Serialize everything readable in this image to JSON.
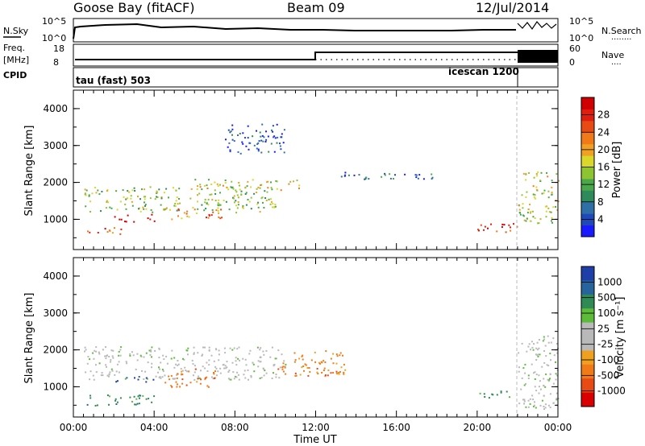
{
  "header": {
    "station": "Goose Bay (fitACF)",
    "beam": "Beam 09",
    "date": "12/Jul/2014"
  },
  "noise_panel": {
    "left_label": "N.Sky",
    "left_ticks": [
      "10^5",
      "10^0"
    ],
    "right_ticks": [
      "10^5",
      "10^0"
    ],
    "right_label": "N.Search",
    "right_dots": "........"
  },
  "freq_panel": {
    "label_line1": "Freq.",
    "label_line2": "[MHz]",
    "left_ticks": [
      "18",
      "8"
    ],
    "right_ticks": [
      "60",
      "0"
    ],
    "right_label": "Nave",
    "right_dots": "...."
  },
  "cpid_panel": {
    "label": "CPID",
    "mode1": "tau (fast) 503",
    "mode2": "icescan 1200"
  },
  "x_axis": {
    "title": "Time UT",
    "ticks": [
      "00:00",
      "04:00",
      "08:00",
      "12:00",
      "16:00",
      "20:00",
      "00:00"
    ]
  },
  "chart_data": [
    {
      "type": "heatmap",
      "title": "",
      "ylabel": "Slant Range [km]",
      "yticks": [
        "1000",
        "2000",
        "3000",
        "4000"
      ],
      "ylim": [
        180,
        4500
      ],
      "xlim": [
        0,
        24
      ],
      "colorbar": {
        "label": "Power [dB]",
        "ticks": [
          "4",
          "8",
          "12",
          "16",
          "20",
          "24",
          "28"
        ],
        "colors": [
          "#1a1aff",
          "#1f49b8",
          "#2f6fa8",
          "#2e8a5a",
          "#4aa84a",
          "#8fc431",
          "#d8d72a",
          "#f0a022",
          "#f07a18",
          "#e84a14",
          "#e01e10",
          "#d00000"
        ]
      },
      "features": [
        {
          "t": [
            0.5,
            10
          ],
          "r": [
            1200,
            1900
          ],
          "level": 0.45
        },
        {
          "t": [
            2.0,
            4.0
          ],
          "r": [
            950,
            1150
          ],
          "level": 0.95
        },
        {
          "t": [
            0.5,
            2.5
          ],
          "r": [
            600,
            800
          ],
          "level": 0.75
        },
        {
          "t": [
            4.5,
            7.5
          ],
          "r": [
            1000,
            1300
          ],
          "level": 0.7
        },
        {
          "t": [
            6.0,
            11.5
          ],
          "r": [
            1800,
            2100
          ],
          "level": 0.55
        },
        {
          "t": [
            7.5,
            10.5
          ],
          "r": [
            2800,
            3600
          ],
          "level": 0.15
        },
        {
          "t": [
            13.0,
            18.0
          ],
          "r": [
            2100,
            2300
          ],
          "level": 0.2
        },
        {
          "t": [
            20.0,
            22.0
          ],
          "r": [
            600,
            900
          ],
          "level": 0.85
        },
        {
          "t": [
            22.0,
            24.0
          ],
          "r": [
            900,
            2300
          ],
          "level": 0.5
        }
      ]
    },
    {
      "type": "heatmap",
      "title": "",
      "ylabel": "Slant Range [km]",
      "yticks": [
        "1000",
        "2000",
        "3000",
        "4000"
      ],
      "ylim": [
        180,
        4500
      ],
      "xlim": [
        0,
        24
      ],
      "colorbar": {
        "label": "Velocity [m s⁻¹]",
        "ticks": [
          "1000",
          "500",
          "100",
          "25",
          "-25",
          "-100",
          "-500",
          "-1000"
        ],
        "colors": [
          "#1f3fa8",
          "#27639d",
          "#2f8a55",
          "#5dbb3a",
          "#b9b9b9",
          "#b9b9b9",
          "#f0a020",
          "#f07a18",
          "#e84a14",
          "#d80000"
        ]
      },
      "features": [
        {
          "t": [
            0.5,
            10.5
          ],
          "r": [
            1200,
            2100
          ],
          "value": 0
        },
        {
          "t": [
            0.5,
            4.0
          ],
          "r": [
            500,
            800
          ],
          "value": 150
        },
        {
          "t": [
            2.0,
            4.0
          ],
          "r": [
            1150,
            1300
          ],
          "value": 700
        },
        {
          "t": [
            4.5,
            7.0
          ],
          "r": [
            1000,
            1500
          ],
          "value": -300
        },
        {
          "t": [
            10.0,
            13.5
          ],
          "r": [
            1300,
            2000
          ],
          "value": -300
        },
        {
          "t": [
            20.0,
            22.0
          ],
          "r": [
            700,
            900
          ],
          "value": 150
        },
        {
          "t": [
            22.0,
            24.0
          ],
          "r": [
            400,
            2400
          ],
          "value": 0
        }
      ]
    }
  ]
}
